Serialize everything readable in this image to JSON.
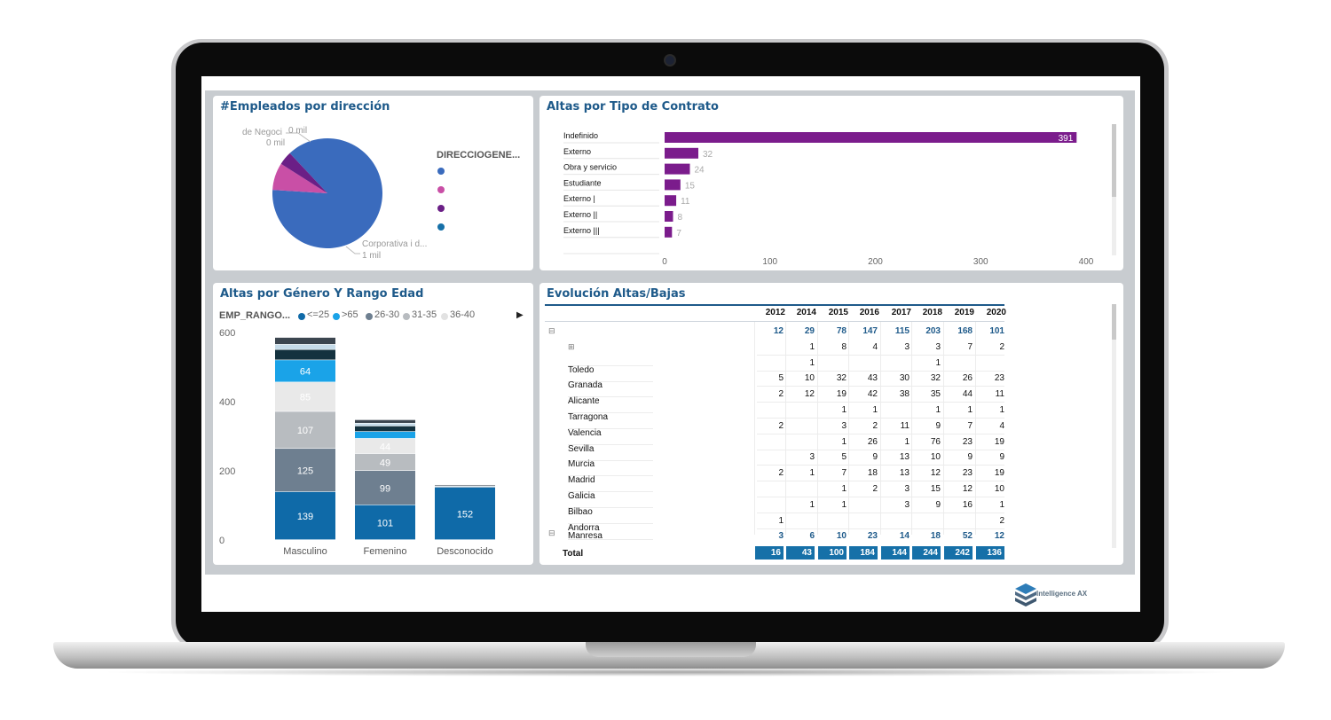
{
  "branding": {
    "logo_text": "Intelligence AX"
  },
  "pie_panel": {
    "title": "#Empleados por dirección",
    "legend_title": "DIRECCIOGENE...",
    "legend_colors": [
      "#3a6bbd",
      "#c94fa6",
      "#6b1f86",
      "#1670a8"
    ],
    "labels": {
      "top_name": "de Negoci",
      "top_value1": "0 mil",
      "top_value2": "0 mil",
      "bottom_name": "Corporativa i d...",
      "bottom_value": "1 mil"
    },
    "chart_data": {
      "type": "pie",
      "slices": [
        {
          "label": "Corporativa i d...",
          "value": 0.88,
          "color": "#3a6bbd"
        },
        {
          "label": "de Negoci",
          "value": 0.08,
          "color": "#c94fa6"
        },
        {
          "label": "",
          "value": 0.04,
          "color": "#6b1f86"
        }
      ]
    }
  },
  "contract_panel": {
    "title": "Altas por Tipo de Contrato",
    "chart_data": {
      "type": "bar",
      "orientation": "horizontal",
      "categories": [
        "Indefinido",
        "Externo",
        "Obra y servicio",
        "Estudiante",
        "Externo |",
        "Externo ||",
        "Externo |||"
      ],
      "values": [
        391,
        32,
        24,
        15,
        11,
        8,
        7
      ],
      "xlim": [
        0,
        400
      ],
      "xticks": [
        "0",
        "100",
        "200",
        "300",
        "400"
      ],
      "color": "#7b1c8c"
    }
  },
  "gender_panel": {
    "title": "Altas por Género Y Rango Edad",
    "legend_title": "EMP_RANGO...",
    "legend": [
      {
        "label": "<=25",
        "color": "#0f6aa8"
      },
      {
        "label": ">65",
        "color": "#1aa3e8"
      },
      {
        "label": "26-30",
        "color": "#6e7f90"
      },
      {
        "label": "31-35",
        "color": "#b8bcc0"
      },
      {
        "label": "36-40",
        "color": "#e2e2e2"
      }
    ],
    "chart_data": {
      "type": "bar",
      "stacked": true,
      "categories": [
        "Masculino",
        "Femenino",
        "Desconocido"
      ],
      "ylim": [
        0,
        600
      ],
      "yticks": [
        "0",
        "200",
        "400",
        "600"
      ],
      "series": [
        {
          "name": "<=25",
          "color": "#0f6aa8",
          "values": [
            139,
            101,
            152
          ],
          "labels": [
            "139",
            "101",
            "152"
          ]
        },
        {
          "name": "26-30",
          "color": "#6e7f90",
          "values": [
            125,
            99,
            0
          ],
          "labels": [
            "125",
            "99",
            ""
          ]
        },
        {
          "name": "31-35",
          "color": "#b8bcc0",
          "values": [
            107,
            49,
            0
          ],
          "labels": [
            "107",
            "49",
            ""
          ]
        },
        {
          "name": "36-40",
          "color": "#e9e9e9",
          "values": [
            85,
            44,
            0
          ],
          "labels": [
            "85",
            "44",
            ""
          ]
        },
        {
          "name": ">65",
          "color": "#1aa3e8",
          "values": [
            64,
            20,
            0
          ],
          "labels": [
            "64",
            "",
            ""
          ]
        },
        {
          "name": "",
          "color": "#14323f",
          "values": [
            30,
            16,
            2
          ],
          "labels": [
            "",
            "",
            ""
          ]
        },
        {
          "name": "",
          "color": "#c6dcea",
          "values": [
            15,
            8,
            2
          ],
          "labels": [
            "",
            "",
            ""
          ]
        },
        {
          "name": "",
          "color": "#3c4650",
          "values": [
            20,
            10,
            3
          ],
          "labels": [
            "",
            "",
            ""
          ]
        }
      ]
    }
  },
  "evolution_panel": {
    "title": "Evolución Altas/Bajas",
    "years": [
      "2012",
      "2014",
      "2015",
      "2016",
      "2017",
      "2018",
      "2019",
      "2020"
    ],
    "rows": [
      {
        "label": "",
        "expander": "⊟",
        "bold": true,
        "values": [
          "12",
          "29",
          "78",
          "147",
          "115",
          "203",
          "168",
          "101"
        ]
      },
      {
        "label": "",
        "expander": "⊞",
        "bold": false,
        "values": [
          "",
          "1",
          "8",
          "4",
          "3",
          "3",
          "7",
          "2"
        ]
      },
      {
        "label": "Toledo",
        "expander": "",
        "bold": false,
        "values": [
          "",
          "1",
          "",
          "",
          "",
          "1",
          "",
          ""
        ]
      },
      {
        "label": "Granada",
        "expander": "",
        "bold": false,
        "values": [
          "5",
          "10",
          "32",
          "43",
          "30",
          "32",
          "26",
          "23"
        ]
      },
      {
        "label": "Alicante",
        "expander": "",
        "bold": false,
        "values": [
          "2",
          "12",
          "19",
          "42",
          "38",
          "35",
          "44",
          "11"
        ]
      },
      {
        "label": "Tarragona",
        "expander": "",
        "bold": false,
        "values": [
          "",
          "",
          "1",
          "1",
          "",
          "1",
          "1",
          "1"
        ]
      },
      {
        "label": "Valencia",
        "expander": "",
        "bold": false,
        "values": [
          "2",
          "",
          "3",
          "2",
          "11",
          "9",
          "7",
          "4"
        ]
      },
      {
        "label": "Sevilla",
        "expander": "",
        "bold": false,
        "values": [
          "",
          "",
          "1",
          "26",
          "1",
          "76",
          "23",
          "19"
        ]
      },
      {
        "label": "Murcia",
        "expander": "",
        "bold": false,
        "values": [
          "",
          "3",
          "5",
          "9",
          "13",
          "10",
          "9",
          "9"
        ]
      },
      {
        "label": "Madrid",
        "expander": "",
        "bold": false,
        "values": [
          "2",
          "1",
          "7",
          "18",
          "13",
          "12",
          "23",
          "19"
        ]
      },
      {
        "label": "Galicia",
        "expander": "",
        "bold": false,
        "values": [
          "",
          "",
          "1",
          "2",
          "3",
          "15",
          "12",
          "10"
        ]
      },
      {
        "label": "Bilbao",
        "expander": "",
        "bold": false,
        "values": [
          "",
          "1",
          "1",
          "",
          "3",
          "9",
          "16",
          "1"
        ]
      },
      {
        "label": "Andorra",
        "expander": "",
        "bold": false,
        "values": [
          "1",
          "",
          "",
          "",
          "",
          "",
          "",
          "2"
        ]
      },
      {
        "label": "Manresa",
        "expander": "⊟",
        "bold": true,
        "values": [
          "3",
          "6",
          "10",
          "23",
          "14",
          "18",
          "52",
          "12"
        ]
      }
    ],
    "total_label": "Total",
    "totals": [
      "16",
      "43",
      "100",
      "184",
      "144",
      "244",
      "242",
      "136"
    ]
  }
}
